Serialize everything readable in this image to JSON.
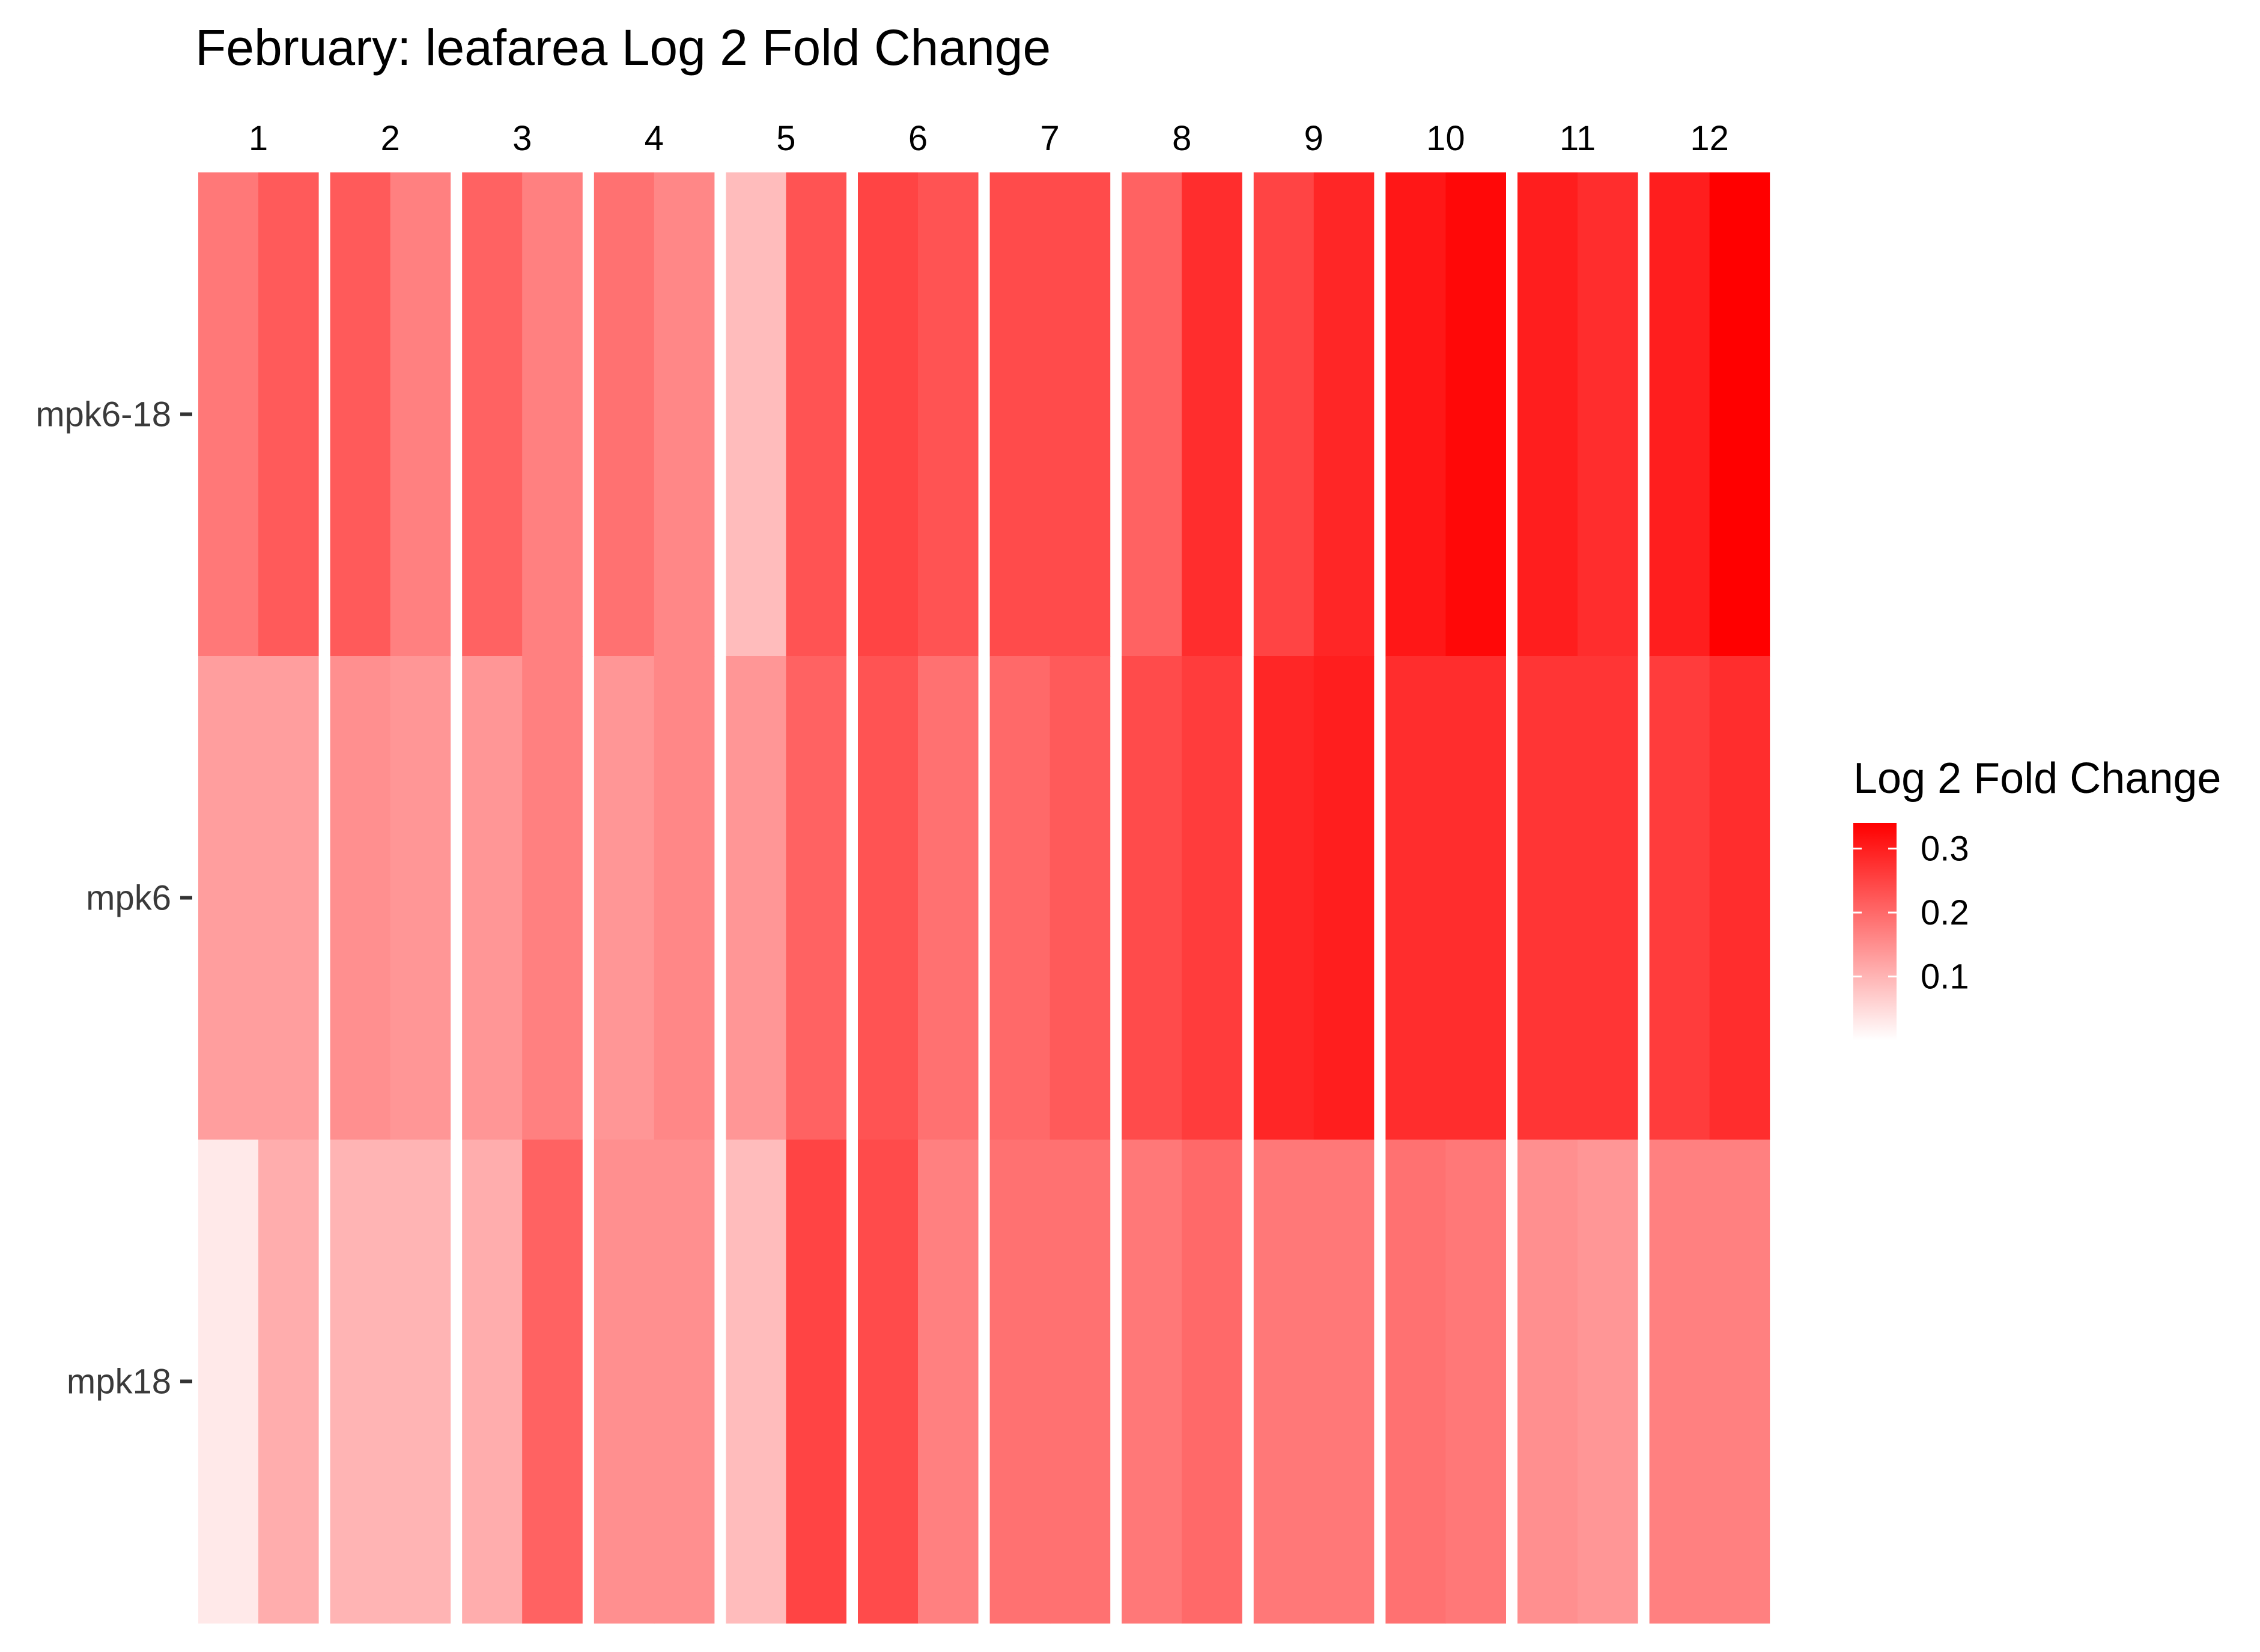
{
  "chart_data": {
    "type": "heatmap",
    "title": "February: leafarea Log 2 Fold Change",
    "columns": [
      "1",
      "2",
      "3",
      "4",
      "5",
      "6",
      "7",
      "8",
      "9",
      "10",
      "11",
      "12"
    ],
    "rows": [
      "mpk6-18",
      "mpk6",
      "mpk18"
    ],
    "values": [
      [
        [
          0.18,
          0.22
        ],
        [
          0.22,
          0.17
        ],
        [
          0.21,
          0.17
        ],
        [
          0.19,
          0.16
        ],
        [
          0.09,
          0.23
        ],
        [
          0.25,
          0.23
        ],
        [
          0.24,
          0.24
        ],
        [
          0.21,
          0.28
        ],
        [
          0.25,
          0.29
        ],
        [
          0.31,
          0.33
        ],
        [
          0.3,
          0.28
        ],
        [
          0.3,
          0.34
        ]
      ],
      [
        [
          0.13,
          0.13
        ],
        [
          0.15,
          0.14
        ],
        [
          0.14,
          0.17
        ],
        [
          0.14,
          0.16
        ],
        [
          0.14,
          0.21
        ],
        [
          0.23,
          0.19
        ],
        [
          0.2,
          0.22
        ],
        [
          0.24,
          0.26
        ],
        [
          0.29,
          0.3
        ],
        [
          0.28,
          0.28
        ],
        [
          0.27,
          0.27
        ],
        [
          0.26,
          0.28
        ]
      ],
      [
        [
          0.03,
          0.11
        ],
        [
          0.1,
          0.1
        ],
        [
          0.11,
          0.21
        ],
        [
          0.15,
          0.15
        ],
        [
          0.09,
          0.25
        ],
        [
          0.24,
          0.17
        ],
        [
          0.19,
          0.19
        ],
        [
          0.18,
          0.2
        ],
        [
          0.18,
          0.18
        ],
        [
          0.19,
          0.18
        ],
        [
          0.15,
          0.14
        ],
        [
          0.17,
          0.17
        ]
      ]
    ],
    "legend": {
      "title": "Log 2 Fold Change",
      "ticks": [
        0.1,
        0.2,
        0.3
      ],
      "range": [
        0.0,
        0.34
      ],
      "placement": "right"
    },
    "colors": {
      "low": "#ffffff",
      "high": "#ff0000"
    }
  }
}
